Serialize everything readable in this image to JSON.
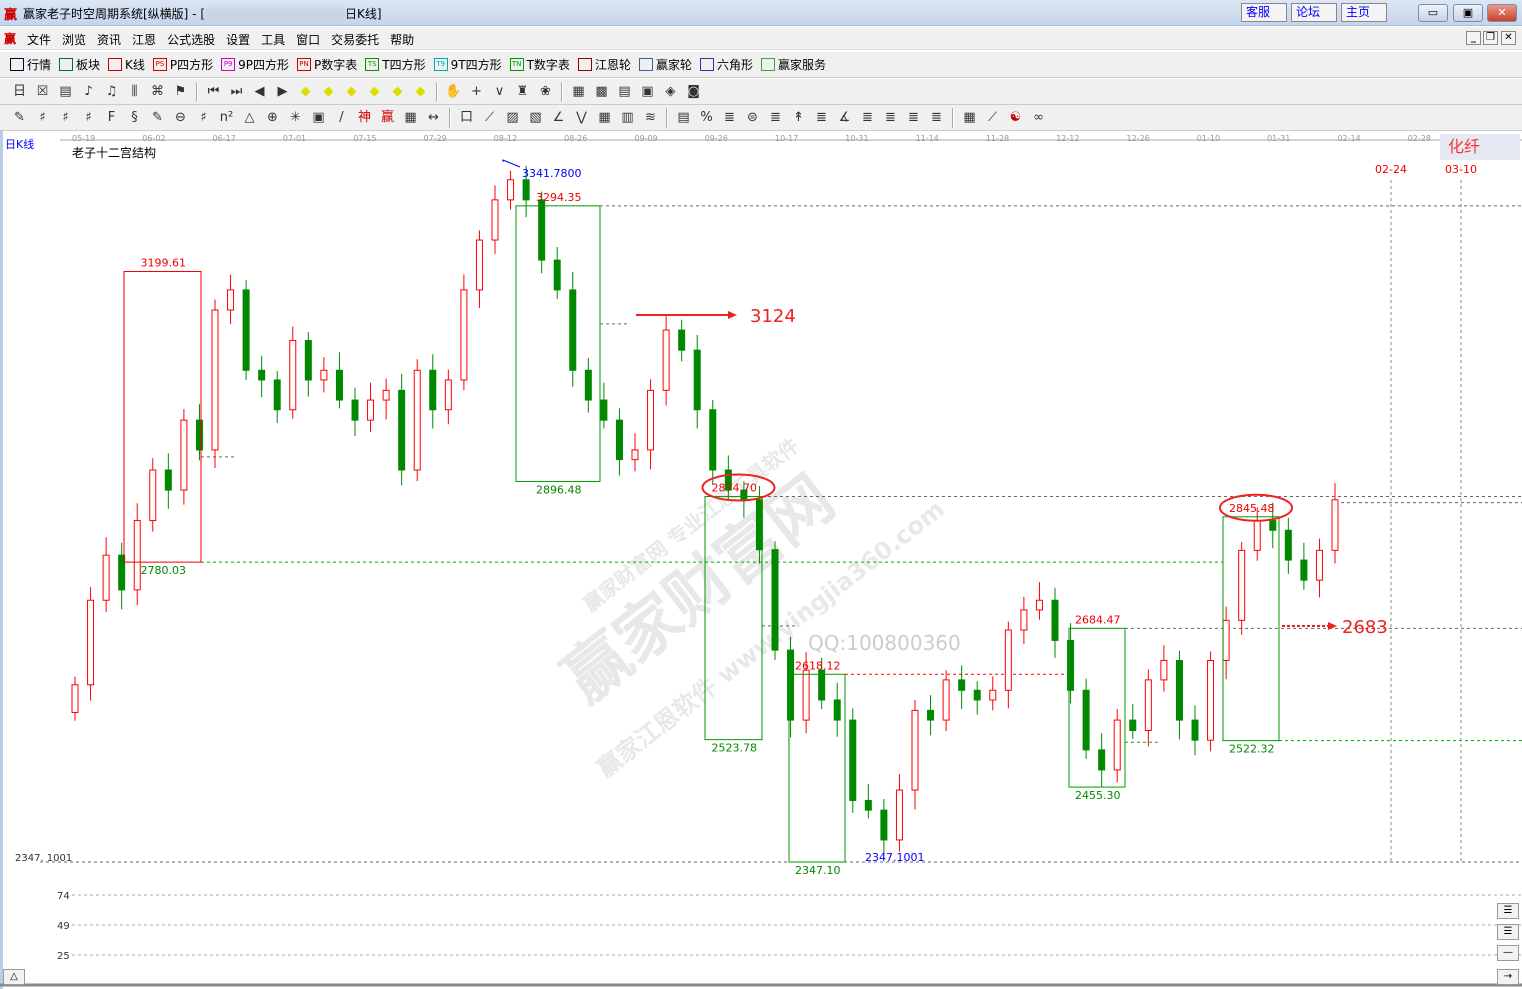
{
  "window": {
    "logo": "赢",
    "title_prefix": "赢家老子时空周期系统[纵横版] - [",
    "title_suffix": "日K线]",
    "links": [
      "客服",
      "论坛",
      "主页"
    ],
    "controls": [
      "minimize",
      "maximize",
      "close"
    ]
  },
  "menu": {
    "logo": "赢",
    "items": [
      "文件",
      "浏览",
      "资讯",
      "江恩",
      "公式选股",
      "设置",
      "工具",
      "窗口",
      "交易委托",
      "帮助"
    ]
  },
  "toolbar": {
    "items": [
      {
        "label": "行情",
        "icon": "grid-icon",
        "color": "#003"
      },
      {
        "label": "板块",
        "icon": "blocks-icon",
        "color": "#066"
      },
      {
        "label": "K线",
        "icon": "candles-icon",
        "color": "#c00"
      },
      {
        "label": "P四方形",
        "icon": "PS",
        "color": "#c00"
      },
      {
        "label": "9P四方形",
        "icon": "P9",
        "color": "#c0c"
      },
      {
        "label": "P数字表",
        "icon": "PN",
        "color": "#c00"
      },
      {
        "label": "T四方形",
        "icon": "TS",
        "color": "#090"
      },
      {
        "label": "9T四方形",
        "icon": "T9",
        "color": "#0aa"
      },
      {
        "label": "T数字表",
        "icon": "TN",
        "color": "#090"
      },
      {
        "label": "江恩轮",
        "icon": "wheel-icon",
        "color": "#800"
      },
      {
        "label": "赢家轮",
        "icon": "wheel-icon",
        "color": "#369"
      },
      {
        "label": "六角形",
        "icon": "hexagon-icon",
        "color": "#339"
      },
      {
        "label": "赢家服务",
        "icon": "dollar-icon",
        "color": "#3a3"
      }
    ]
  },
  "toolbar2": [
    "日",
    "☒",
    "▤",
    "♪",
    "♫",
    "⫼",
    "⌘",
    "⚑",
    "|",
    "⏮",
    "⏭",
    "◀",
    "▶",
    "◆",
    "◆",
    "◆",
    "◆",
    "◆",
    "◆",
    "|",
    "✋",
    "+",
    "∨",
    "♜",
    "❀",
    "|",
    "▦",
    "▩",
    "▤",
    "▣",
    "◈",
    "◙"
  ],
  "toolbar3": [
    "✎",
    "♯",
    "♯",
    "♯",
    "F",
    "§",
    "✎",
    "⊖",
    "♯",
    "n²",
    "△",
    "⊕",
    "✳",
    "▣",
    "/",
    "神",
    "赢",
    "▦",
    "↔",
    "|",
    "口",
    "⟋",
    "▨",
    "▧",
    "∠",
    "⋁",
    "▦",
    "▥",
    "≋",
    "|",
    "▤",
    "%",
    "≣",
    "⊜",
    "≣",
    "↟",
    "≣",
    "∡",
    "≣",
    "≣",
    "≣",
    "≣",
    "|",
    "▦",
    "⟋",
    "☯",
    "∞"
  ],
  "chart": {
    "period_label": "日K线",
    "indicator_name": "老子十二宫结构",
    "corner_badge": "化纤",
    "date_ticks": [
      "05-19",
      "06-02",
      "06-17",
      "07-01",
      "07-15",
      "07-29",
      "08-12",
      "08-26",
      "09-09",
      "09-26",
      "10-17",
      "10-31",
      "11-14",
      "11-28",
      "12-12",
      "12-26",
      "01-10",
      "01-31",
      "02-14",
      "02-28"
    ],
    "future_dates": [
      "02-24",
      "03-10"
    ],
    "high_label": "3341.7800",
    "low_label": "2347.1001",
    "low_axis_label": "2347. 1001",
    "boxes": [
      {
        "top": "3199.61",
        "bottom": "2780.03",
        "hi": 3199.61,
        "lo": 2780.03,
        "color": "#e00"
      },
      {
        "top": "3294.35",
        "bottom": "2896.48",
        "hi": 3294.35,
        "lo": 2896.48,
        "color": "#090"
      },
      {
        "top": "2874.70",
        "bottom": "2523.78",
        "hi": 2874.7,
        "lo": 2523.78,
        "color": "#090",
        "circled": true
      },
      {
        "top": "2618.12",
        "bottom": "2347.10",
        "hi": 2618.12,
        "lo": 2347.1,
        "color": "#090"
      },
      {
        "top": "2684.47",
        "bottom": "2455.30",
        "hi": 2684.47,
        "lo": 2455.3,
        "color": "#090"
      },
      {
        "top": "2845.48",
        "bottom": "2522.32",
        "hi": 2845.48,
        "lo": 2522.32,
        "color": "#090",
        "circled": true
      }
    ],
    "targets": [
      "3124",
      "2683"
    ],
    "indicator_levels": [
      "74",
      "49",
      "25"
    ],
    "watermark": {
      "main": "赢家财富网",
      "sub": "赢家江恩软件  www.yingjia360.com",
      "sub2": "赢家财富网 专业江恩工具软件",
      "qq": "QQ:100800360"
    },
    "colors": {
      "up": "#ff0000",
      "down": "#008800",
      "accent_blue": "#0000ff"
    }
  },
  "chart_data": {
    "type": "candlestick",
    "ylim": [
      2347.1,
      3341.78
    ],
    "closes": [
      2603,
      2725,
      2790,
      2740,
      2840,
      2913,
      2884,
      2985,
      2942,
      3144,
      3173,
      3057,
      3043,
      3000,
      3100,
      3043,
      3057,
      3014,
      2985,
      3014,
      3028,
      2913,
      3057,
      3000,
      3043,
      3173,
      3245,
      3303,
      3332,
      3303,
      3216,
      3173,
      3057,
      3014,
      2985,
      2928,
      2942,
      3028,
      3115,
      3086,
      3000,
      2913,
      2884,
      2870,
      2798,
      2653,
      2552,
      2624,
      2581,
      2552,
      2436,
      2422,
      2379,
      2451,
      2566,
      2552,
      2610,
      2595,
      2581,
      2595,
      2682,
      2711,
      2725,
      2667,
      2595,
      2509,
      2480,
      2552,
      2537,
      2610,
      2638,
      2552,
      2523,
      2638,
      2696,
      2797,
      2840,
      2826,
      2783,
      2754,
      2797,
      2870
    ]
  }
}
